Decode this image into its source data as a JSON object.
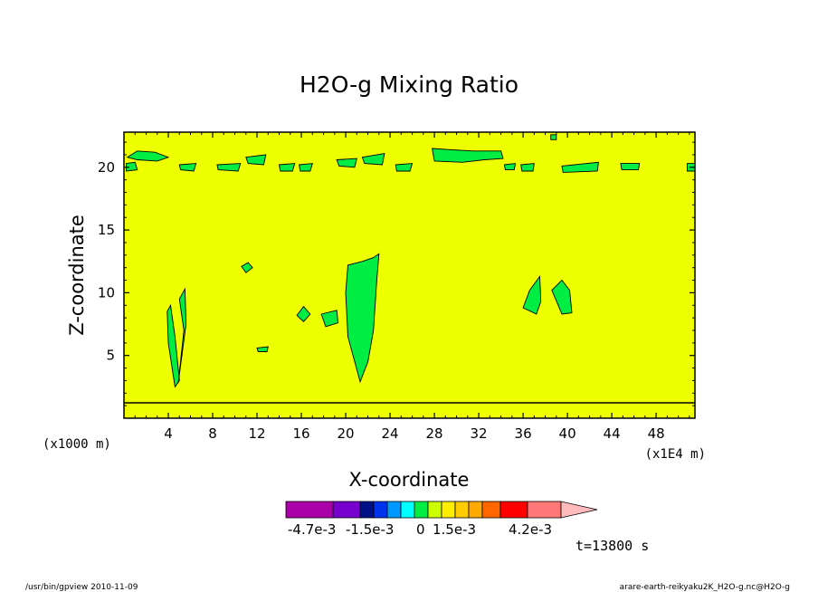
{
  "chart_data": {
    "type": "contour",
    "title": "H2O-g Mixing Ratio",
    "xlabel": "X-coordinate",
    "ylabel": "Z-coordinate",
    "x_unit_left": "(x1000 m)",
    "x_unit_right": "(x1E4 m)",
    "xlim": [
      0,
      51.5
    ],
    "ylim": [
      0,
      22.8
    ],
    "x_ticks": [
      4,
      8,
      12,
      16,
      20,
      24,
      28,
      32,
      36,
      40,
      44,
      48
    ],
    "y_ticks": [
      5,
      10,
      15,
      20
    ],
    "background_fill": "#eeff00",
    "feature_fill": "#00ee44",
    "regions": [
      {
        "name": "upper-band-1",
        "points": [
          [
            0.3,
            20.8
          ],
          [
            1.2,
            21.3
          ],
          [
            2.8,
            21.2
          ],
          [
            4.0,
            20.8
          ],
          [
            3.0,
            20.5
          ],
          [
            1.2,
            20.6
          ]
        ]
      },
      {
        "name": "upper-band-2",
        "points": [
          [
            0.2,
            20.3
          ],
          [
            1.0,
            20.4
          ],
          [
            1.2,
            19.8
          ],
          [
            0.2,
            19.7
          ]
        ]
      },
      {
        "name": "upper-band-3",
        "points": [
          [
            5.0,
            20.2
          ],
          [
            6.5,
            20.3
          ],
          [
            6.3,
            19.7
          ],
          [
            5.1,
            19.8
          ]
        ]
      },
      {
        "name": "upper-band-4",
        "points": [
          [
            8.4,
            20.2
          ],
          [
            10.5,
            20.3
          ],
          [
            10.3,
            19.7
          ],
          [
            8.5,
            19.8
          ]
        ]
      },
      {
        "name": "upper-band-5",
        "points": [
          [
            11.0,
            20.8
          ],
          [
            12.8,
            21.0
          ],
          [
            12.6,
            20.2
          ],
          [
            11.2,
            20.3
          ]
        ]
      },
      {
        "name": "upper-band-6",
        "points": [
          [
            14.0,
            20.2
          ],
          [
            15.4,
            20.3
          ],
          [
            15.2,
            19.7
          ],
          [
            14.1,
            19.7
          ]
        ]
      },
      {
        "name": "upper-band-7",
        "points": [
          [
            15.8,
            20.2
          ],
          [
            17.0,
            20.3
          ],
          [
            16.8,
            19.7
          ],
          [
            15.9,
            19.7
          ]
        ]
      },
      {
        "name": "upper-band-8",
        "points": [
          [
            19.2,
            20.6
          ],
          [
            21.0,
            20.7
          ],
          [
            20.8,
            20.0
          ],
          [
            19.4,
            20.1
          ]
        ]
      },
      {
        "name": "upper-band-9",
        "points": [
          [
            21.5,
            20.8
          ],
          [
            23.5,
            21.1
          ],
          [
            23.3,
            20.2
          ],
          [
            21.7,
            20.3
          ]
        ]
      },
      {
        "name": "upper-band-10",
        "points": [
          [
            24.5,
            20.2
          ],
          [
            26.0,
            20.3
          ],
          [
            25.8,
            19.7
          ],
          [
            24.6,
            19.7
          ]
        ]
      },
      {
        "name": "upper-band-11",
        "points": [
          [
            27.8,
            21.5
          ],
          [
            29.5,
            21.4
          ],
          [
            31.5,
            21.3
          ],
          [
            34.0,
            21.3
          ],
          [
            34.2,
            20.7
          ],
          [
            32.5,
            20.6
          ],
          [
            30.5,
            20.4
          ],
          [
            28.0,
            20.5
          ]
        ]
      },
      {
        "name": "upper-band-12",
        "points": [
          [
            34.3,
            20.2
          ],
          [
            35.3,
            20.3
          ],
          [
            35.2,
            19.8
          ],
          [
            34.4,
            19.8
          ]
        ]
      },
      {
        "name": "upper-band-13",
        "points": [
          [
            35.8,
            20.2
          ],
          [
            37.0,
            20.3
          ],
          [
            36.9,
            19.7
          ],
          [
            35.9,
            19.7
          ]
        ]
      },
      {
        "name": "upper-band-14",
        "points": [
          [
            39.5,
            20.1
          ],
          [
            42.8,
            20.4
          ],
          [
            42.7,
            19.7
          ],
          [
            39.6,
            19.6
          ]
        ]
      },
      {
        "name": "upper-band-15",
        "points": [
          [
            44.8,
            20.3
          ],
          [
            46.5,
            20.3
          ],
          [
            46.4,
            19.8
          ],
          [
            44.9,
            19.8
          ]
        ]
      },
      {
        "name": "upper-band-16",
        "points": [
          [
            50.8,
            20.3
          ],
          [
            51.5,
            20.3
          ],
          [
            51.5,
            19.7
          ],
          [
            50.8,
            19.7
          ]
        ]
      },
      {
        "name": "upper-blob-17",
        "points": [
          [
            38.5,
            22.6
          ],
          [
            39.0,
            22.6
          ],
          [
            39.0,
            22.2
          ],
          [
            38.5,
            22.2
          ]
        ]
      },
      {
        "name": "column-left-a",
        "points": [
          [
            4.6,
            2.5
          ],
          [
            4.0,
            6.0
          ],
          [
            3.9,
            8.5
          ],
          [
            4.2,
            9.0
          ],
          [
            4.6,
            6.5
          ],
          [
            5.0,
            3.0
          ]
        ]
      },
      {
        "name": "column-left-b",
        "points": [
          [
            4.9,
            2.8
          ],
          [
            5.6,
            7.5
          ],
          [
            5.5,
            10.3
          ],
          [
            5.0,
            9.5
          ],
          [
            5.4,
            7.0
          ]
        ]
      },
      {
        "name": "column-center",
        "points": [
          [
            21.3,
            2.9
          ],
          [
            20.2,
            6.5
          ],
          [
            20.0,
            10.0
          ],
          [
            20.2,
            12.2
          ],
          [
            21.5,
            12.5
          ],
          [
            22.5,
            12.8
          ],
          [
            23.0,
            13.1
          ],
          [
            22.8,
            11.0
          ],
          [
            22.5,
            7.0
          ],
          [
            22.0,
            4.5
          ]
        ]
      },
      {
        "name": "blob-12",
        "points": [
          [
            10.6,
            12.1
          ],
          [
            11.2,
            12.4
          ],
          [
            11.6,
            12.0
          ],
          [
            11.0,
            11.6
          ]
        ]
      },
      {
        "name": "blob-17",
        "points": [
          [
            15.6,
            8.2
          ],
          [
            16.2,
            8.9
          ],
          [
            16.8,
            8.3
          ],
          [
            16.2,
            7.7
          ]
        ]
      },
      {
        "name": "blob-19",
        "points": [
          [
            17.8,
            8.3
          ],
          [
            19.2,
            8.6
          ],
          [
            19.3,
            7.6
          ],
          [
            18.2,
            7.3
          ]
        ]
      },
      {
        "name": "blob-37",
        "points": [
          [
            36.0,
            8.8
          ],
          [
            36.6,
            10.2
          ],
          [
            37.5,
            11.3
          ],
          [
            37.6,
            9.3
          ],
          [
            37.2,
            8.3
          ]
        ]
      },
      {
        "name": "blob-39",
        "points": [
          [
            38.6,
            10.2
          ],
          [
            39.5,
            11.0
          ],
          [
            40.2,
            10.2
          ],
          [
            40.4,
            8.4
          ],
          [
            39.5,
            8.3
          ]
        ]
      },
      {
        "name": "blob-13",
        "points": [
          [
            12.0,
            5.6
          ],
          [
            13.0,
            5.7
          ],
          [
            12.9,
            5.3
          ],
          [
            12.1,
            5.3
          ]
        ]
      }
    ],
    "colorbar": {
      "colors": [
        "#aa00aa",
        "#7700cc",
        "#001188",
        "#0033ee",
        "#0099ff",
        "#00ffff",
        "#00ee44",
        "#ccff00",
        "#ffee00",
        "#ffcc00",
        "#ffaa00",
        "#ff6600",
        "#ff0000",
        "#ff7777",
        "#ffbbbb"
      ],
      "labels": [
        "-4.7e-3",
        "-1.5e-3",
        "0",
        "1.5e-3",
        "4.2e-3"
      ]
    },
    "time_label": "t=13800 s"
  },
  "footer": {
    "left": "/usr/bin/gpview   2010-11-09",
    "right": "arare-earth-reikyaku2K_H2O-g.nc@H2O-g"
  }
}
